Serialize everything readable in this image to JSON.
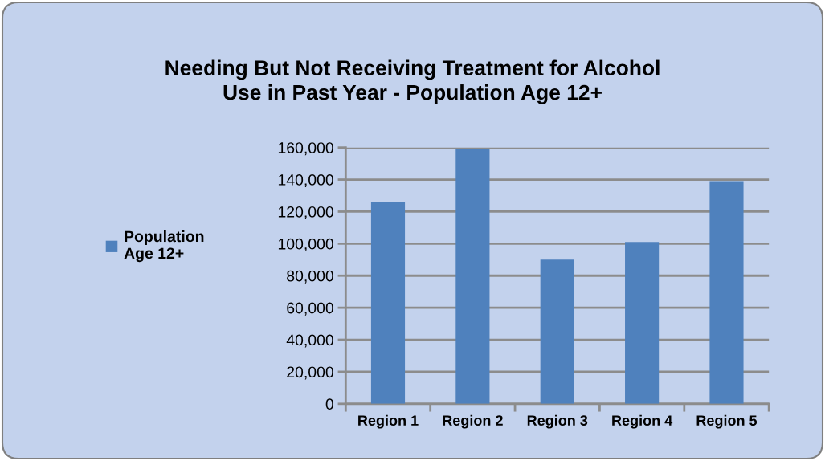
{
  "chart_data": {
    "type": "bar",
    "title": "Needing But Not Receiving Treatment for Alcohol Use in Past Year - Population Age 12+",
    "categories": [
      "Region 1",
      "Region 2",
      "Region 3",
      "Region 4",
      "Region 5"
    ],
    "series": [
      {
        "name": "Population Age 12+",
        "color": "#4f81bd",
        "values": [
          126000,
          159000,
          90000,
          101000,
          139000
        ]
      }
    ],
    "ylim": [
      0,
      160000
    ],
    "yticks": [
      0,
      {
        "value": 20000,
        "label": "20,000"
      },
      {
        "value": 40000,
        "label": "40,000"
      },
      {
        "value": 60000,
        "label": "60,000"
      },
      {
        "value": 80000,
        "label": "80,000"
      },
      {
        "value": 100000,
        "label": "100,000"
      },
      {
        "value": 120000,
        "label": "120,000"
      },
      {
        "value": 140000,
        "label": "140,000"
      },
      {
        "value": 160000,
        "label": "160,000"
      }
    ],
    "grid": "y",
    "legend": "left"
  }
}
